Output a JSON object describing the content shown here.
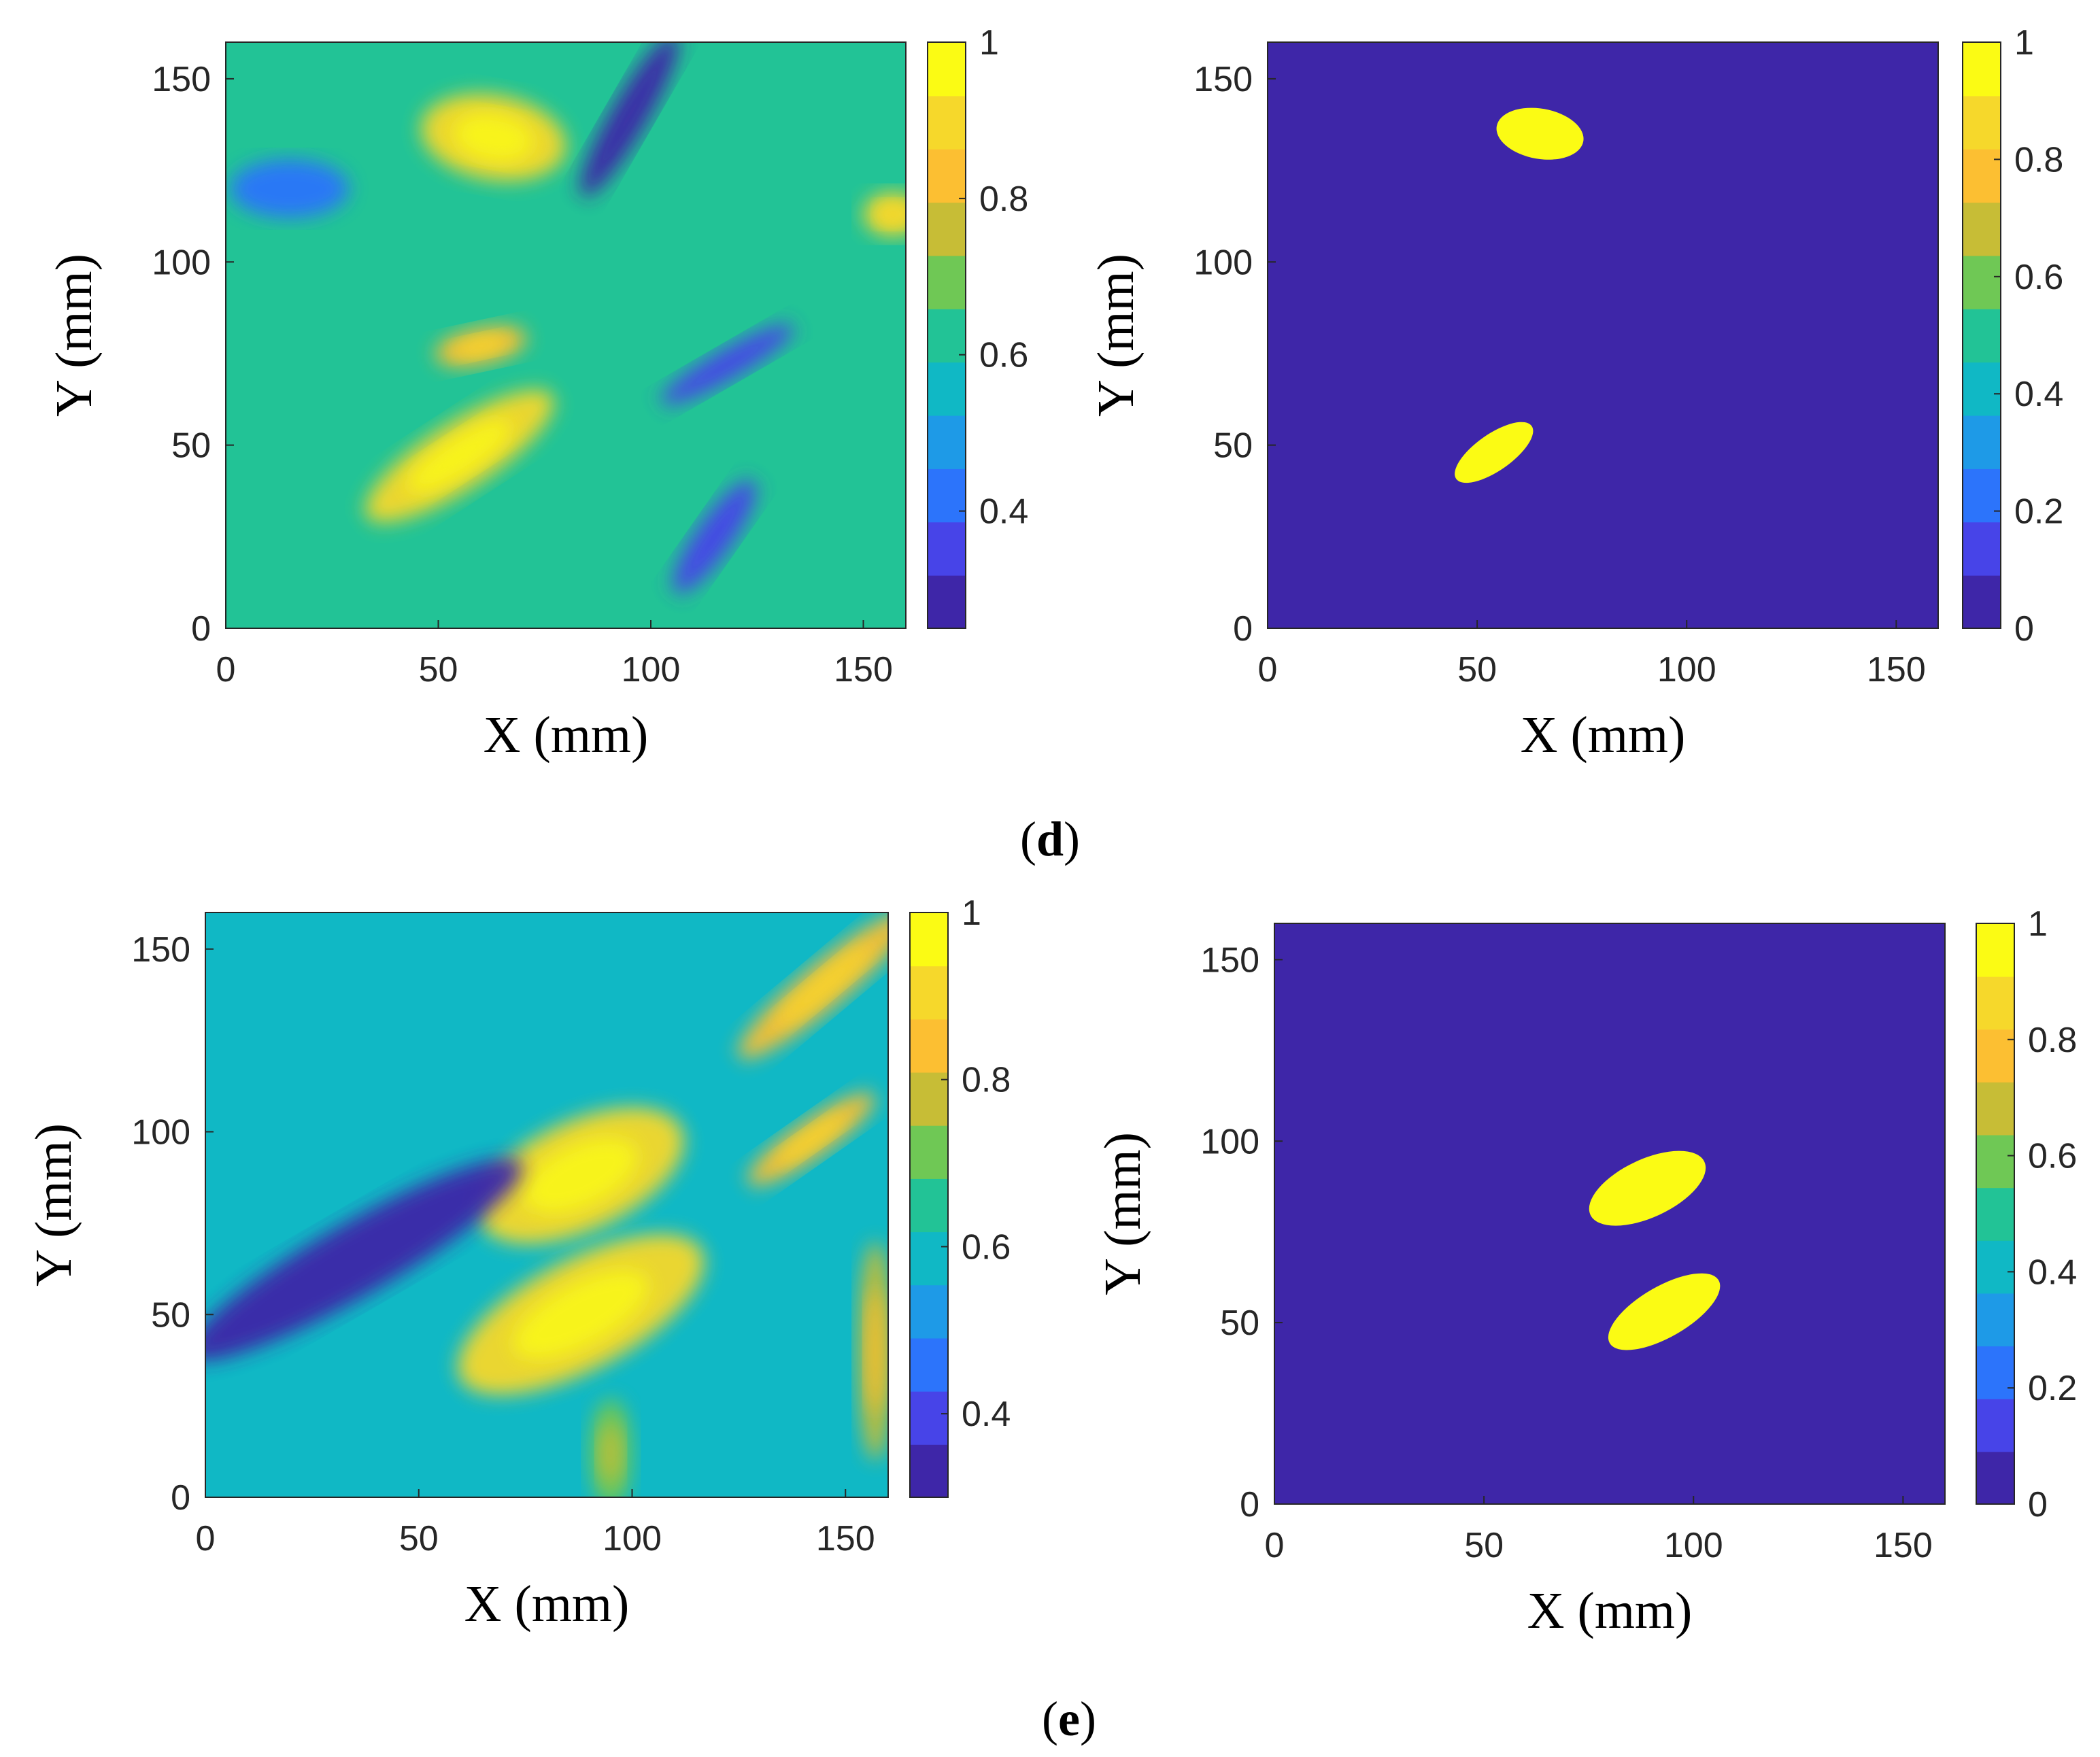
{
  "colors": {
    "background": "#ffffff",
    "colormap": [
      "#3e26a8",
      "#4744e8",
      "#2c74fb",
      "#1e9ae7",
      "#10b8c5",
      "#22c396",
      "#6fc855",
      "#c7bd36",
      "#fcbf32",
      "#f6d82b",
      "#fbfb14"
    ]
  },
  "captions": [
    {
      "open": "(",
      "letter": "d",
      "close": ")"
    },
    {
      "open": "(",
      "letter": "e",
      "close": ")"
    }
  ],
  "chart_data": [
    {
      "type": "heatmap",
      "panel": "d-left",
      "xlabel": "X (mm)",
      "ylabel": "Y (mm)",
      "xlim": [
        0,
        160
      ],
      "ylim": [
        0,
        160
      ],
      "xticks": [
        "0",
        "50",
        "100",
        "150"
      ],
      "yticks": [
        "0",
        "50",
        "100",
        "150"
      ],
      "clim": [
        0.25,
        1
      ],
      "colorbar_ticks": [
        "0.4",
        "0.6",
        "0.8",
        "1"
      ],
      "colorbar_tick_values": [
        0.4,
        0.6,
        0.8,
        1
      ],
      "background_level": 0.6,
      "blobs": [
        {
          "x": 63,
          "y": 134,
          "rx": 10,
          "ry": 20,
          "angle": 80,
          "value": 0.95
        },
        {
          "x": 55,
          "y": 47,
          "rx": 26,
          "ry": 9,
          "angle": 33,
          "value": 0.92
        },
        {
          "x": 60,
          "y": 77,
          "rx": 11,
          "ry": 5,
          "angle": 12,
          "value": 0.85
        },
        {
          "x": 157,
          "y": 113,
          "rx": 7,
          "ry": 6,
          "angle": 0,
          "value": 0.9
        },
        {
          "x": 95,
          "y": 140,
          "rx": 22,
          "ry": 5,
          "angle": 60,
          "value": 0.28
        },
        {
          "x": 115,
          "y": 25,
          "rx": 16,
          "ry": 5,
          "angle": 55,
          "value": 0.3
        },
        {
          "x": 118,
          "y": 72,
          "rx": 18,
          "ry": 4,
          "angle": 30,
          "value": 0.35
        },
        {
          "x": 15,
          "y": 120,
          "rx": 14,
          "ry": 8,
          "angle": 0,
          "value": 0.4
        }
      ]
    },
    {
      "type": "heatmap",
      "panel": "d-right",
      "xlabel": "X (mm)",
      "ylabel": "Y (mm)",
      "xlim": [
        0,
        160
      ],
      "ylim": [
        0,
        160
      ],
      "xticks": [
        "0",
        "50",
        "100",
        "150"
      ],
      "yticks": [
        "0",
        "50",
        "100",
        "150"
      ],
      "clim": [
        0,
        1
      ],
      "colorbar_ticks": [
        "0",
        "0.2",
        "0.4",
        "0.6",
        "0.8",
        "1"
      ],
      "colorbar_tick_values": [
        0,
        0.2,
        0.4,
        0.6,
        0.8,
        1
      ],
      "background_level": 0,
      "blobs": [
        {
          "x": 65,
          "y": 135,
          "rx": 6,
          "ry": 12,
          "angle": 80,
          "value": 1
        },
        {
          "x": 54,
          "y": 48,
          "rx": 11,
          "ry": 5,
          "angle": 35,
          "value": 1
        }
      ]
    },
    {
      "type": "heatmap",
      "panel": "e-left",
      "xlabel": "X (mm)",
      "ylabel": "Y (mm)",
      "xlim": [
        0,
        160
      ],
      "ylim": [
        0,
        160
      ],
      "xticks": [
        "0",
        "50",
        "100",
        "150"
      ],
      "yticks": [
        "0",
        "50",
        "100",
        "150"
      ],
      "clim": [
        0.3,
        1
      ],
      "colorbar_ticks": [
        "0.4",
        "0.6",
        "0.8",
        "1"
      ],
      "colorbar_tick_values": [
        0.4,
        0.6,
        0.8,
        1
      ],
      "background_level": 0.55,
      "blobs": [
        {
          "x": 88,
          "y": 88,
          "rx": 26,
          "ry": 15,
          "angle": 25,
          "value": 0.95
        },
        {
          "x": 88,
          "y": 50,
          "rx": 32,
          "ry": 15,
          "angle": 28,
          "value": 0.95
        },
        {
          "x": 145,
          "y": 140,
          "rx": 26,
          "ry": 6,
          "angle": 40,
          "value": 0.85
        },
        {
          "x": 142,
          "y": 98,
          "rx": 18,
          "ry": 5,
          "angle": 35,
          "value": 0.85
        },
        {
          "x": 157,
          "y": 40,
          "rx": 4,
          "ry": 30,
          "angle": 0,
          "value": 0.8
        },
        {
          "x": 35,
          "y": 65,
          "rx": 45,
          "ry": 10,
          "angle": 30,
          "value": 0.32
        },
        {
          "x": 95,
          "y": 12,
          "rx": 5,
          "ry": 15,
          "angle": 0,
          "value": 0.75
        }
      ]
    },
    {
      "type": "heatmap",
      "panel": "e-right",
      "xlabel": "X (mm)",
      "ylabel": "Y (mm)",
      "xlim": [
        0,
        160
      ],
      "ylim": [
        0,
        160
      ],
      "xticks": [
        "0",
        "50",
        "100",
        "150"
      ],
      "yticks": [
        "0",
        "50",
        "100",
        "150"
      ],
      "clim": [
        0,
        1
      ],
      "colorbar_ticks": [
        "0",
        "0.2",
        "0.4",
        "0.6",
        "0.8",
        "1"
      ],
      "colorbar_tick_values": [
        0,
        0.2,
        0.4,
        0.6,
        0.8,
        1
      ],
      "background_level": 0,
      "blobs": [
        {
          "x": 89,
          "y": 87,
          "rx": 15,
          "ry": 8,
          "angle": 25,
          "value": 1
        },
        {
          "x": 93,
          "y": 53,
          "rx": 15,
          "ry": 7,
          "angle": 30,
          "value": 1
        }
      ]
    }
  ]
}
